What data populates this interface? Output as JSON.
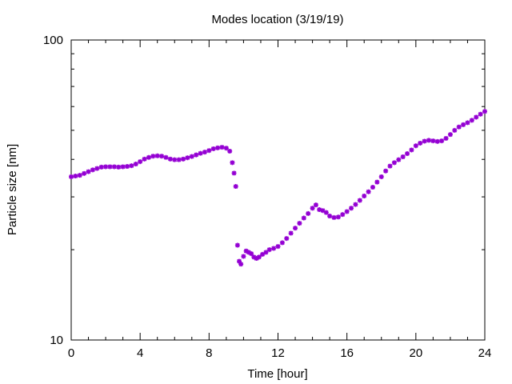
{
  "chart_data": {
    "type": "scatter",
    "title": "Modes location (3/19/19)",
    "xlabel": "Time [hour]",
    "ylabel": "Particle size [nm]",
    "xlim": [
      0,
      24
    ],
    "ylim": [
      10,
      100
    ],
    "yscale": "log",
    "grid": false,
    "legend": "none",
    "x_ticks": [
      "0",
      "4",
      "8",
      "12",
      "16",
      "20",
      "24"
    ],
    "y_ticks": [
      "10",
      "100"
    ],
    "marker_color": "#9400d3",
    "series": [
      {
        "points": [
          [
            0.0,
            35.0
          ],
          [
            0.25,
            35.2
          ],
          [
            0.5,
            35.4
          ],
          [
            0.75,
            35.9
          ],
          [
            1.0,
            36.4
          ],
          [
            1.25,
            36.9
          ],
          [
            1.5,
            37.3
          ],
          [
            1.75,
            37.7
          ],
          [
            2.0,
            37.8
          ],
          [
            2.25,
            37.8
          ],
          [
            2.5,
            37.8
          ],
          [
            2.75,
            37.7
          ],
          [
            3.0,
            37.8
          ],
          [
            3.25,
            37.9
          ],
          [
            3.5,
            38.1
          ],
          [
            3.75,
            38.6
          ],
          [
            4.0,
            39.3
          ],
          [
            4.25,
            40.1
          ],
          [
            4.5,
            40.6
          ],
          [
            4.75,
            41.0
          ],
          [
            5.0,
            41.1
          ],
          [
            5.25,
            41.0
          ],
          [
            5.5,
            40.6
          ],
          [
            5.75,
            40.1
          ],
          [
            6.0,
            39.9
          ],
          [
            6.25,
            39.9
          ],
          [
            6.5,
            40.1
          ],
          [
            6.75,
            40.5
          ],
          [
            7.0,
            40.9
          ],
          [
            7.25,
            41.4
          ],
          [
            7.5,
            41.9
          ],
          [
            7.75,
            42.3
          ],
          [
            8.0,
            42.8
          ],
          [
            8.25,
            43.4
          ],
          [
            8.5,
            43.7
          ],
          [
            8.75,
            43.9
          ],
          [
            9.0,
            43.6
          ],
          [
            9.2,
            42.6
          ],
          [
            9.35,
            39.0
          ],
          [
            9.45,
            36.0
          ],
          [
            9.55,
            32.5
          ],
          [
            9.65,
            20.7
          ],
          [
            9.75,
            18.3
          ],
          [
            9.85,
            17.9
          ],
          [
            10.0,
            19.0
          ],
          [
            10.15,
            19.8
          ],
          [
            10.3,
            19.6
          ],
          [
            10.45,
            19.4
          ],
          [
            10.6,
            18.9
          ],
          [
            10.75,
            18.7
          ],
          [
            10.9,
            18.9
          ],
          [
            11.1,
            19.3
          ],
          [
            11.3,
            19.6
          ],
          [
            11.5,
            20.0
          ],
          [
            11.75,
            20.2
          ],
          [
            12.0,
            20.5
          ],
          [
            12.25,
            21.1
          ],
          [
            12.5,
            21.8
          ],
          [
            12.75,
            22.7
          ],
          [
            13.0,
            23.6
          ],
          [
            13.25,
            24.5
          ],
          [
            13.5,
            25.5
          ],
          [
            13.75,
            26.4
          ],
          [
            14.0,
            27.5
          ],
          [
            14.2,
            28.2
          ],
          [
            14.4,
            27.2
          ],
          [
            14.6,
            27.0
          ],
          [
            14.8,
            26.6
          ],
          [
            15.0,
            25.9
          ],
          [
            15.25,
            25.6
          ],
          [
            15.5,
            25.7
          ],
          [
            15.75,
            26.2
          ],
          [
            16.0,
            26.8
          ],
          [
            16.25,
            27.5
          ],
          [
            16.5,
            28.3
          ],
          [
            16.75,
            29.2
          ],
          [
            17.0,
            30.2
          ],
          [
            17.25,
            31.2
          ],
          [
            17.5,
            32.3
          ],
          [
            17.75,
            33.6
          ],
          [
            18.0,
            35.0
          ],
          [
            18.25,
            36.6
          ],
          [
            18.5,
            38.0
          ],
          [
            18.75,
            39.0
          ],
          [
            19.0,
            39.9
          ],
          [
            19.25,
            40.8
          ],
          [
            19.5,
            41.8
          ],
          [
            19.75,
            43.0
          ],
          [
            20.0,
            44.4
          ],
          [
            20.25,
            45.3
          ],
          [
            20.5,
            46.0
          ],
          [
            20.75,
            46.3
          ],
          [
            21.0,
            46.1
          ],
          [
            21.25,
            45.9
          ],
          [
            21.5,
            46.1
          ],
          [
            21.75,
            47.0
          ],
          [
            22.0,
            48.4
          ],
          [
            22.25,
            50.0
          ],
          [
            22.5,
            51.3
          ],
          [
            22.75,
            52.2
          ],
          [
            23.0,
            53.0
          ],
          [
            23.25,
            54.0
          ],
          [
            23.5,
            55.3
          ],
          [
            23.75,
            56.6
          ],
          [
            24.0,
            57.8
          ]
        ]
      }
    ]
  }
}
